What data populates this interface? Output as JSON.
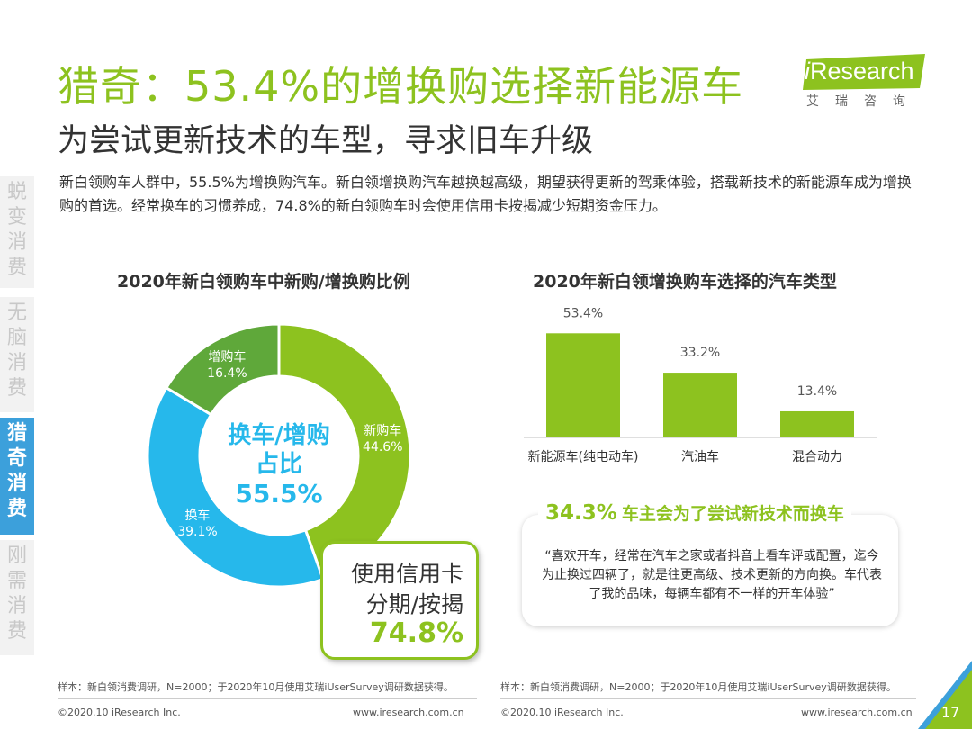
{
  "header": {
    "title": "猎奇：53.4%的增换购选择新能源车",
    "subtitle": "为尝试更新技术的车型，寻求旧车升级",
    "description": "新白领购车人群中，55.5%为增换购汽车。新白领增换购汽车越换越高级，期望获得更新的驾乘体验，搭载新技术的新能源车成为增换购的首选。经常换车的习惯养成，74.8%的新白领购车时会使用信用卡按揭减少短期资金压力。"
  },
  "logo": {
    "brand": "Research",
    "brand_i": "i",
    "cn": "艾瑞咨询"
  },
  "sidebar": [
    {
      "label": "蜕变消费",
      "active": false
    },
    {
      "label": "无脑消费",
      "active": false
    },
    {
      "label": "猎奇消费",
      "active": true
    },
    {
      "label": "刚需消费",
      "active": false
    }
  ],
  "colors": {
    "green": "#8dc21f",
    "dark_green": "#5fa83a",
    "blue": "#26b8eb"
  },
  "chart_data": [
    {
      "type": "pie",
      "title": "2020年新白领购车中新购/增换购比例",
      "slices": [
        {
          "label": "新购车",
          "value": 44.6,
          "value_label": "44.6%",
          "color": "#8dc21f"
        },
        {
          "label": "换车",
          "value": 39.1,
          "value_label": "39.1%",
          "color": "#26b8eb"
        },
        {
          "label": "增购车",
          "value": 16.4,
          "value_label": "16.4%",
          "color": "#5fa83a"
        }
      ],
      "center": {
        "line1": "换车/增购",
        "line2": "占比",
        "value": "55.5%"
      }
    },
    {
      "type": "bar",
      "title": "2020年新白领增换购车选择的汽车类型",
      "categories": [
        "新能源车(纯电动车)",
        "汽油车",
        "混合动力"
      ],
      "values": [
        53.4,
        33.2,
        13.4
      ],
      "value_labels": [
        "53.4%",
        "33.2%",
        "13.4%"
      ],
      "ylim": [
        0,
        60
      ],
      "color": "#8dc21f"
    }
  ],
  "callout": {
    "line1": "使用信用卡",
    "line2": "分期/按揭",
    "value": "74.8%"
  },
  "quote": {
    "pct": "34.3%",
    "headline": "车主会为了尝试新技术而换车",
    "text": "“喜欢开车，经常在汽车之家或者抖音上看车评或配置，迄今为止换过四辆了，就是往更高级、技术更新的方向换。车代表了我的品味，每辆车都有不一样的开车体验”"
  },
  "notes": {
    "left": "样本：新白领消费调研，N=2000；于2020年10月使用艾瑞iUserSurvey调研数据获得。",
    "right": "样本：新白领消费调研，N=2000；于2020年10月使用艾瑞iUserSurvey调研数据获得。"
  },
  "footer": {
    "copyright_left": "©2020.10 iResearch Inc.",
    "url_left": "www.iresearch.com.cn",
    "copyright_right": "©2020.10 iResearch Inc.",
    "url_right": "www.iresearch.com.cn",
    "page": "17"
  }
}
